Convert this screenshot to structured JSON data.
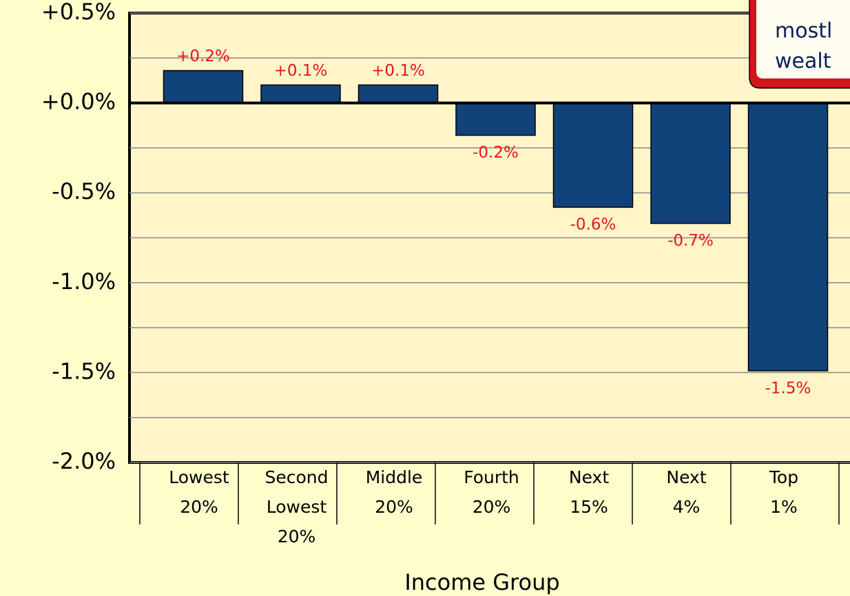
{
  "chart_data": {
    "type": "bar",
    "categories": [
      [
        "Lowest",
        "20%"
      ],
      [
        "Second",
        "Lowest",
        "20%"
      ],
      [
        "Middle",
        "20%"
      ],
      [
        "Fourth",
        "20%"
      ],
      [
        "Next",
        "15%"
      ],
      [
        "Next",
        "4%"
      ],
      [
        "Top",
        "1%"
      ]
    ],
    "values": [
      0.18,
      0.1,
      0.1,
      -0.18,
      -0.58,
      -0.67,
      -1.49
    ],
    "value_labels": [
      "+0.2%",
      "+0.1%",
      "+0.1%",
      "-0.2%",
      "-0.6%",
      "-0.7%",
      "-1.5%"
    ],
    "color": "#11427a",
    "label_color": "#e8141e",
    "ylim": [
      -2.0,
      0.5
    ],
    "yticks": [
      {
        "value": 0.5,
        "label": "+0.5%"
      },
      {
        "value": 0.0,
        "label": "+0.0%"
      },
      {
        "value": -0.5,
        "label": "-0.5%"
      },
      {
        "value": -1.0,
        "label": "-1.0%"
      },
      {
        "value": -1.5,
        "label": "-1.5%"
      },
      {
        "value": -2.0,
        "label": "-2.0%"
      }
    ],
    "minor_yticks": [
      0.25,
      -0.25,
      -0.75,
      -1.25,
      -1.75
    ],
    "grid": true,
    "xlabel": "Income Group",
    "annotation": [
      "mostl",
      "wealt"
    ]
  }
}
